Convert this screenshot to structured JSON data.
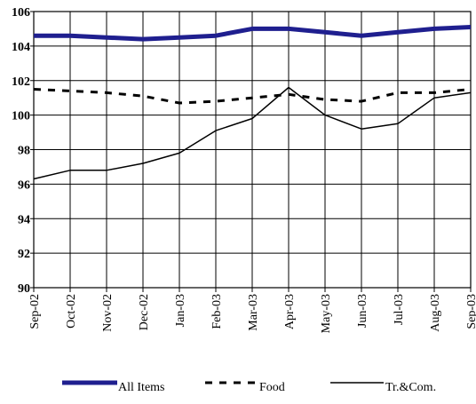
{
  "chart_data": {
    "type": "line",
    "categories": [
      "Sep-02",
      "Oct-02",
      "Nov-02",
      "Dec-02",
      "Jan-03",
      "Feb-03",
      "Mar-03",
      "Apr-03",
      "May-03",
      "Jun-03",
      "Jul-03",
      "Aug-03",
      "Sep-03"
    ],
    "series": [
      {
        "name": "All Items",
        "values": [
          104.6,
          104.6,
          104.5,
          104.4,
          104.5,
          104.6,
          105.0,
          105.0,
          104.8,
          104.6,
          104.8,
          105.0,
          105.1
        ],
        "color": "#1f1f8f",
        "style": "thick-solid"
      },
      {
        "name": "Food",
        "values": [
          101.5,
          101.4,
          101.3,
          101.1,
          100.7,
          100.8,
          101.0,
          101.2,
          100.9,
          100.8,
          101.3,
          101.3,
          101.5
        ],
        "color": "#000000",
        "style": "dashed"
      },
      {
        "name": "Tr.&Com.",
        "values": [
          96.3,
          96.8,
          96.8,
          97.2,
          97.8,
          99.1,
          99.8,
          101.6,
          100.0,
          99.2,
          99.5,
          101.0,
          101.3
        ],
        "color": "#000000",
        "style": "thin-solid"
      }
    ],
    "ylim": [
      90,
      106
    ],
    "yticks": [
      "90",
      "92",
      "94",
      "96",
      "98",
      "100",
      "102",
      "104",
      "106"
    ],
    "grid": true,
    "legend_position": "bottom"
  }
}
